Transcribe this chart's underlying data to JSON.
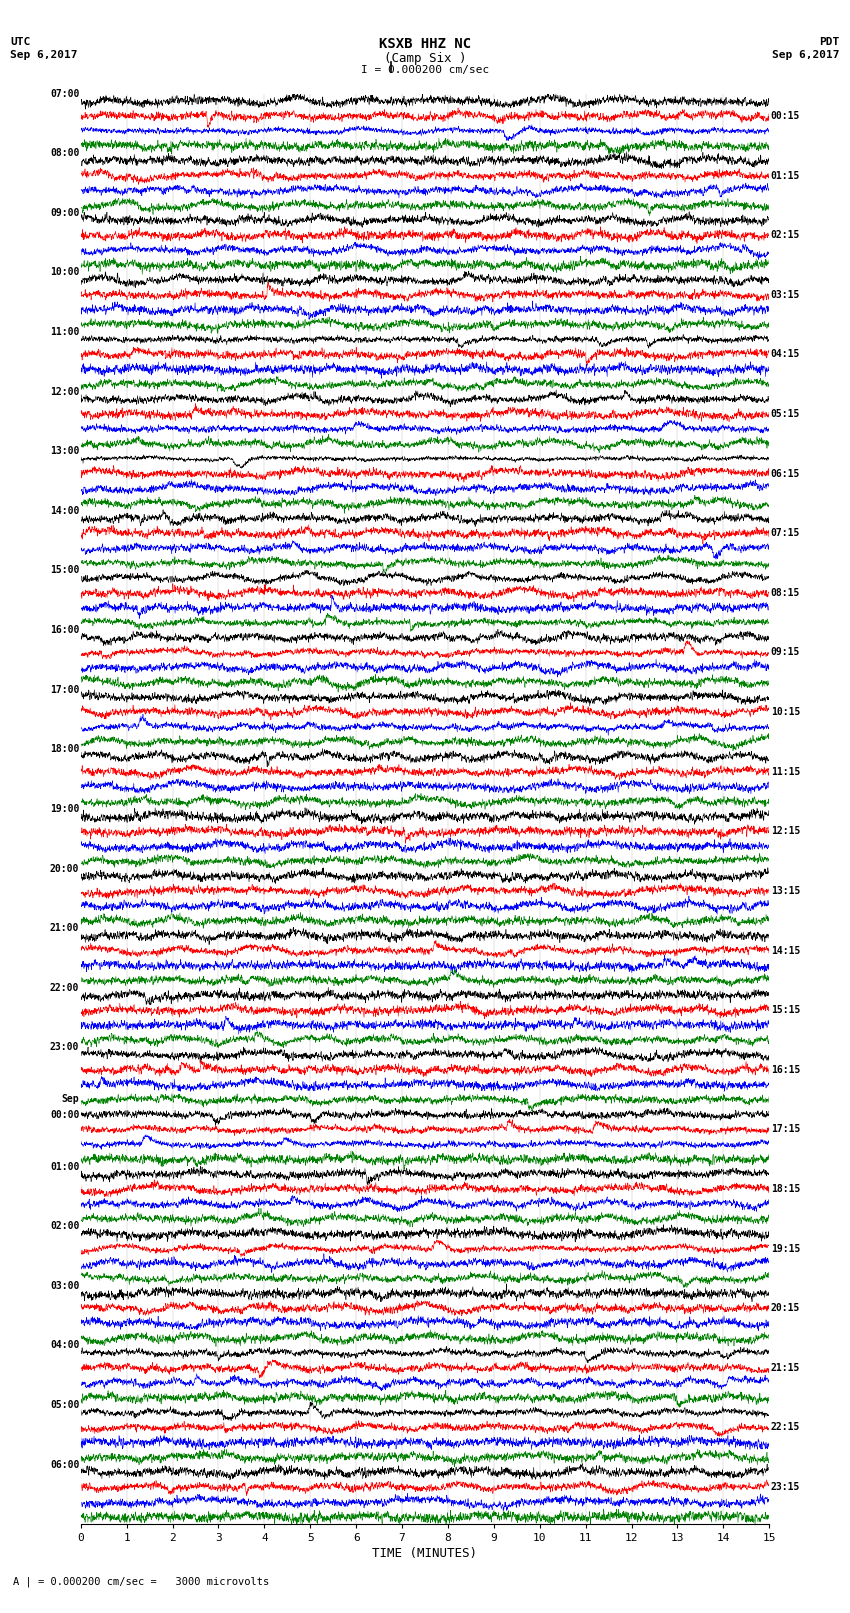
{
  "title": "KSXB HHZ NC",
  "subtitle": "(Camp Six )",
  "scale_label": "I = 0.000200 cm/sec",
  "scale_note": "A | = 0.000200 cm/sec =   3000 microvolts",
  "utc_label": "UTC",
  "utc_date": "Sep 6,2017",
  "pdt_label": "PDT",
  "pdt_date": "Sep 6,2017",
  "xlabel": "TIME (MINUTES)",
  "xticks": [
    0,
    1,
    2,
    3,
    4,
    5,
    6,
    7,
    8,
    9,
    10,
    11,
    12,
    13,
    14,
    15
  ],
  "background_color": "#ffffff",
  "trace_colors": [
    "#000000",
    "#ff0000",
    "#0000ff",
    "#008000"
  ],
  "fig_width": 8.5,
  "fig_height": 16.13,
  "dpi": 100,
  "utc_hour_labels": [
    "07:00",
    "08:00",
    "09:00",
    "10:00",
    "11:00",
    "12:00",
    "13:00",
    "14:00",
    "15:00",
    "16:00",
    "17:00",
    "18:00",
    "19:00",
    "20:00",
    "21:00",
    "22:00",
    "23:00",
    "00:00",
    "01:00",
    "02:00",
    "03:00",
    "04:00",
    "05:00",
    "06:00"
  ],
  "sep_label_index": 17,
  "pdt_hour_labels": [
    "00:15",
    "01:15",
    "02:15",
    "03:15",
    "04:15",
    "05:15",
    "06:15",
    "07:15",
    "08:15",
    "09:15",
    "10:15",
    "11:15",
    "12:15",
    "13:15",
    "14:15",
    "15:15",
    "16:15",
    "17:15",
    "18:15",
    "19:15",
    "20:15",
    "21:15",
    "22:15",
    "23:15"
  ],
  "num_hours": 24,
  "traces_per_hour": 4,
  "noise_seed": 42,
  "trace_linewidth": 0.4,
  "minute_gridlines": true
}
